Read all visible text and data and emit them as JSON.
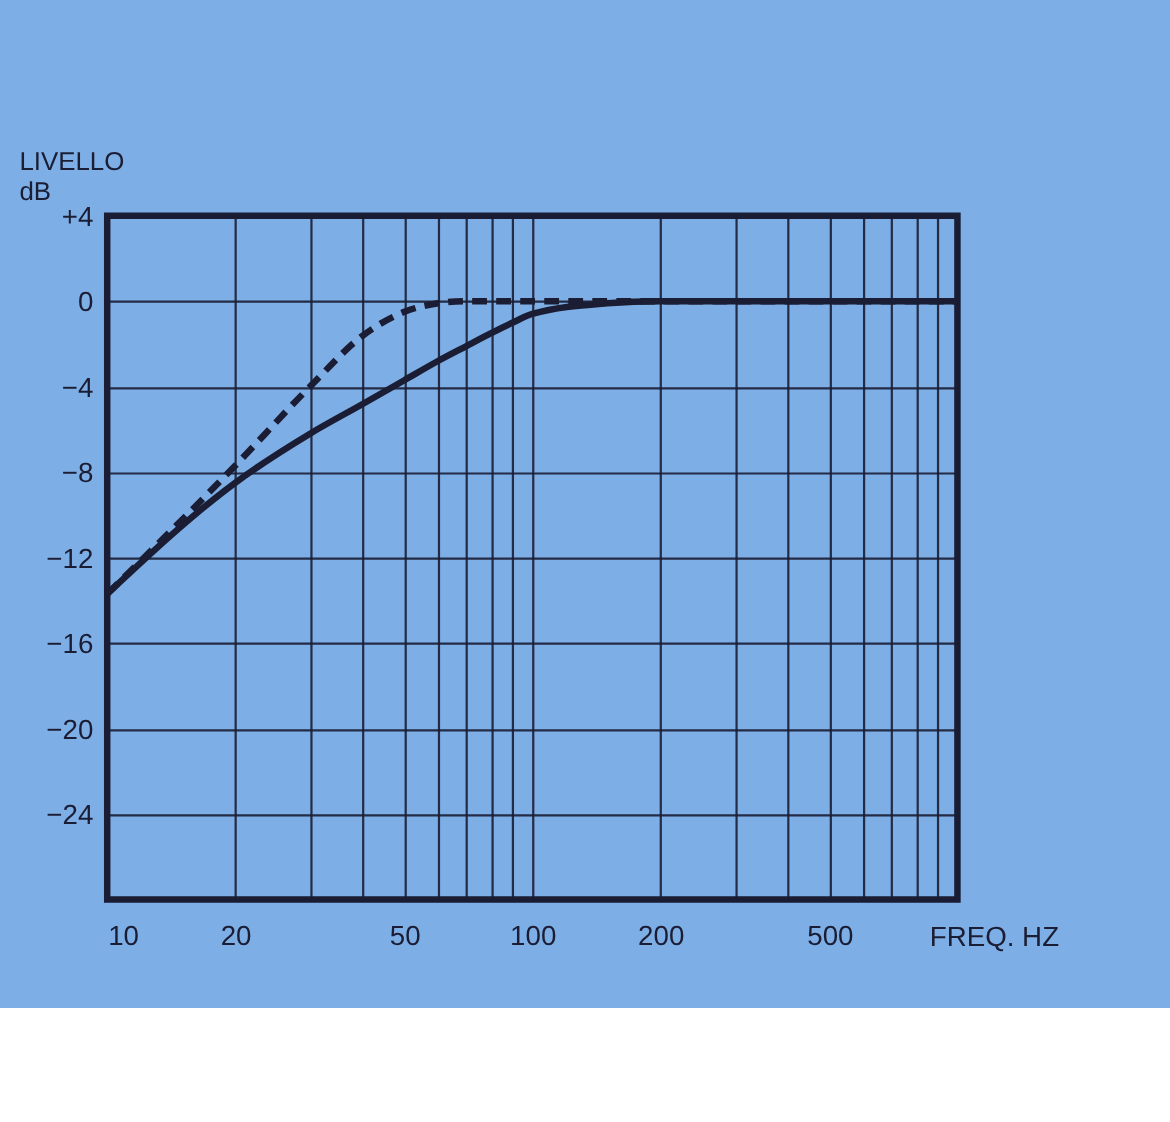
{
  "chart_data": {
    "type": "line",
    "xlabel": "FREQ. HZ",
    "ylabel": "LIVELLO\ndB",
    "log": "x",
    "xlim": [
      10,
      1000
    ],
    "ylim": [
      -28,
      4
    ],
    "xticks": [
      10,
      20,
      {
        "value": 30,
        "label": null
      },
      {
        "value": 40,
        "label": null
      },
      50,
      {
        "value": 60,
        "label": null
      },
      {
        "value": 70,
        "label": null
      },
      {
        "value": 80,
        "label": null
      },
      {
        "value": 90,
        "label": null
      },
      100,
      200,
      {
        "value": 300,
        "label": null
      },
      {
        "value": 400,
        "label": null
      },
      500,
      {
        "value": 600,
        "label": null
      },
      {
        "value": 700,
        "label": null
      },
      {
        "value": 800,
        "label": null
      },
      {
        "value": 900,
        "label": null
      },
      {
        "value": 1000,
        "label": null
      }
    ],
    "yticks": [
      {
        "value": 4,
        "label": "+4"
      },
      0,
      {
        "value": -4,
        "label": "−4"
      },
      {
        "value": -8,
        "label": "−8"
      },
      {
        "value": -12,
        "label": "−12"
      },
      {
        "value": -16,
        "label": "−16"
      },
      {
        "value": -20,
        "label": "−20"
      },
      {
        "value": -24,
        "label": "−24"
      },
      {
        "value": -28,
        "label": null
      }
    ],
    "grid": true,
    "marker": "none",
    "series": [
      {
        "color": "#1a1d33",
        "line_style": "solid",
        "x": [
          10,
          20,
          30,
          40,
          50,
          60,
          70,
          80,
          90,
          100,
          150,
          200,
          1000
        ],
        "values": [
          -13.7,
          -8.5,
          -6.2,
          -4.8,
          -3.7,
          -2.8,
          -2.1,
          -1.5,
          -1,
          -0.6,
          -0.1,
          0,
          0
        ]
      },
      {
        "color": "#1a1d33",
        "line_style": "dashed",
        "x": [
          10,
          20,
          30,
          40,
          50,
          60,
          70,
          1000
        ],
        "values": [
          -13.7,
          -7.7,
          -4,
          -1.6,
          -0.5,
          -0.1,
          0,
          0
        ]
      }
    ]
  }
}
